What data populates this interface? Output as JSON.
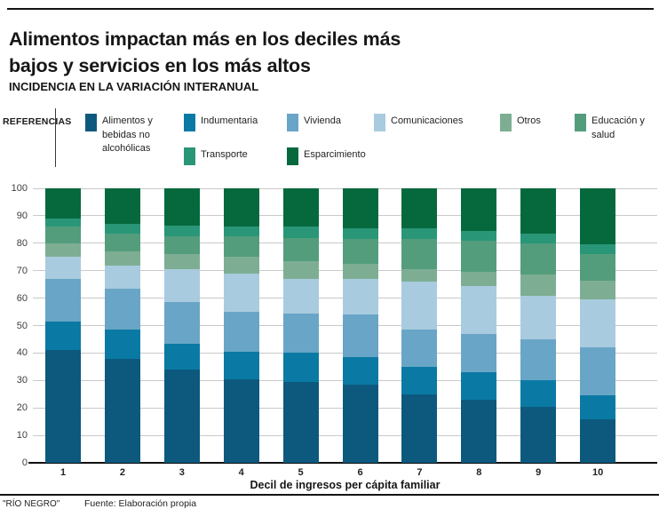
{
  "header": {
    "title": "Alimentos impactan más en los deciles más\nbajos y servicios en los más altos",
    "subtitle": "INCIDENCIA EN LA VARIACIÓN INTERANUAL"
  },
  "legend": {
    "label": "REFERENCIAS"
  },
  "chart_data": {
    "type": "bar",
    "stacked": true,
    "title": "Alimentos impactan más en los deciles más bajos y servicios en los más altos",
    "subtitle": "INCIDENCIA EN LA VARIACIÓN INTERANUAL",
    "xlabel": "Decil de ingresos per cápita familiar",
    "ylabel": "",
    "ylim": [
      0,
      100
    ],
    "yticks": [
      0,
      10,
      20,
      30,
      40,
      50,
      60,
      70,
      80,
      90,
      100
    ],
    "grid": true,
    "legend_position": "top",
    "categories": [
      "1",
      "2",
      "3",
      "4",
      "5",
      "6",
      "7",
      "8",
      "9",
      "10"
    ],
    "series": [
      {
        "name": "Alimentos y bebidas no alcohólicas",
        "color": "#0d597e",
        "values": [
          41,
          38,
          34,
          30.5,
          29.5,
          28.5,
          25,
          23,
          20.5,
          16
        ]
      },
      {
        "name": "Indumentaria",
        "color": "#0a7aa4",
        "values": [
          10.5,
          10.5,
          9.5,
          10,
          10.5,
          10,
          10,
          10,
          9.5,
          8.5
        ]
      },
      {
        "name": "Vivienda",
        "color": "#69a5c6",
        "values": [
          15.5,
          15,
          15,
          14.5,
          14.5,
          15.5,
          13.5,
          14,
          15,
          17.5
        ]
      },
      {
        "name": "Comunicaciones",
        "color": "#a9cbdf",
        "values": [
          8,
          8.5,
          12,
          14,
          12.5,
          13,
          17.5,
          17.5,
          16,
          17.5
        ]
      },
      {
        "name": "Otros",
        "color": "#7dae93",
        "values": [
          5,
          5,
          5.5,
          6,
          6.5,
          5.5,
          4.5,
          5,
          7.5,
          7
        ]
      },
      {
        "name": "Educación y salud",
        "color": "#539d7d",
        "values": [
          6,
          6.5,
          6.5,
          7.5,
          8.5,
          9,
          11,
          11.5,
          11.5,
          9.5
        ]
      },
      {
        "name": "Transporte",
        "color": "#2a9678",
        "values": [
          3,
          3.5,
          4,
          3.5,
          4,
          4,
          4,
          3.5,
          3.5,
          3.5
        ]
      },
      {
        "name": "Esparcimiento",
        "color": "#06693d",
        "values": [
          11,
          13,
          13.5,
          14,
          14,
          14.5,
          14.5,
          15.5,
          16.5,
          20.5
        ]
      }
    ]
  },
  "footer": {
    "brand": "\"RÍO NEGRO\"",
    "source": "Fuente: Elaboración propia"
  }
}
